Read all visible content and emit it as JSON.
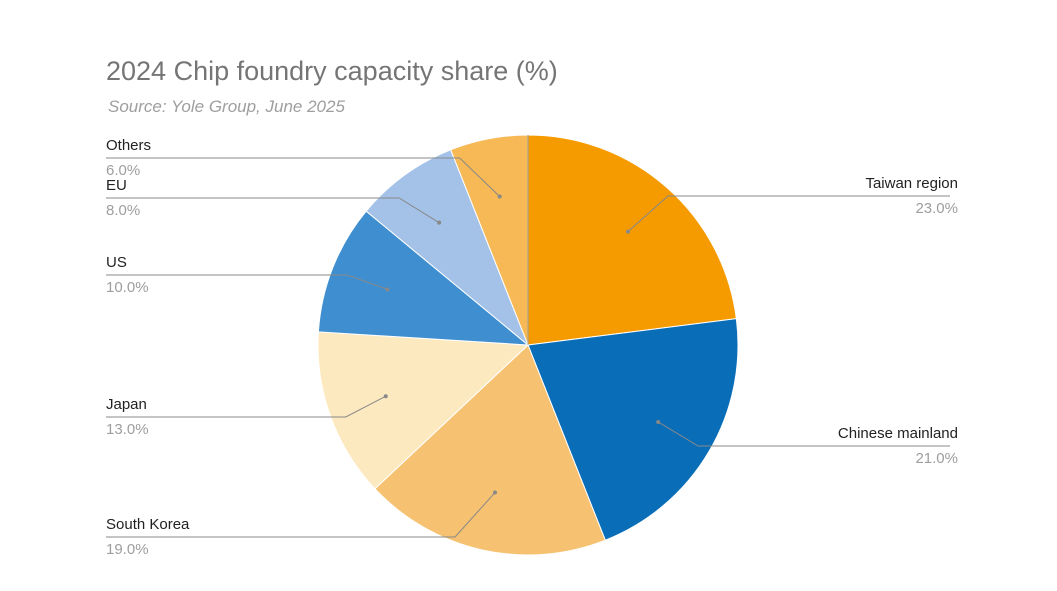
{
  "chart_data": {
    "type": "pie",
    "title": "2024 Chip foundry capacity share (%)",
    "subtitle": "Source: Yole Group, June 2025",
    "slices": [
      {
        "label": "Taiwan region",
        "value": 23.0,
        "display": "23.0%",
        "color": "#f59b00"
      },
      {
        "label": "Chinese mainland",
        "value": 21.0,
        "display": "21.0%",
        "color": "#0a6db8"
      },
      {
        "label": "South Korea",
        "value": 19.0,
        "display": "19.0%",
        "color": "#f6c272"
      },
      {
        "label": "Japan",
        "value": 13.0,
        "display": "13.0%",
        "color": "#fde9bf"
      },
      {
        "label": "US",
        "value": 10.0,
        "display": "10.0%",
        "color": "#3f8fd0"
      },
      {
        "label": "EU",
        "value": 8.0,
        "display": "8.0%",
        "color": "#a4c2e8"
      },
      {
        "label": "Others",
        "value": 6.0,
        "display": "6.0%",
        "color": "#f7b955"
      }
    ],
    "legend_position": "labels with leader lines"
  }
}
